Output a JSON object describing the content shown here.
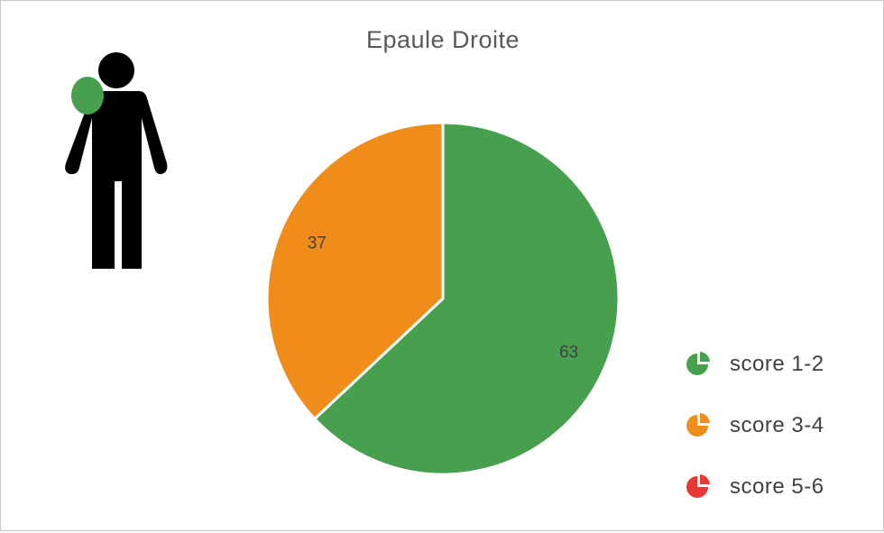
{
  "chart_data": {
    "type": "pie",
    "title": "Epaule Droite",
    "categories": [
      "score 1-2",
      "score 3-4",
      "score 5-6"
    ],
    "values": [
      63,
      37,
      0
    ],
    "data_labels": [
      "63",
      "37",
      ""
    ],
    "colors": [
      "#46A04D",
      "#F08C1A",
      "#E53935"
    ],
    "legend_position": "right"
  },
  "figure": {
    "icon": "person-silhouette-icon",
    "highlight": "right-shoulder",
    "highlight_color": "#46A04D"
  }
}
